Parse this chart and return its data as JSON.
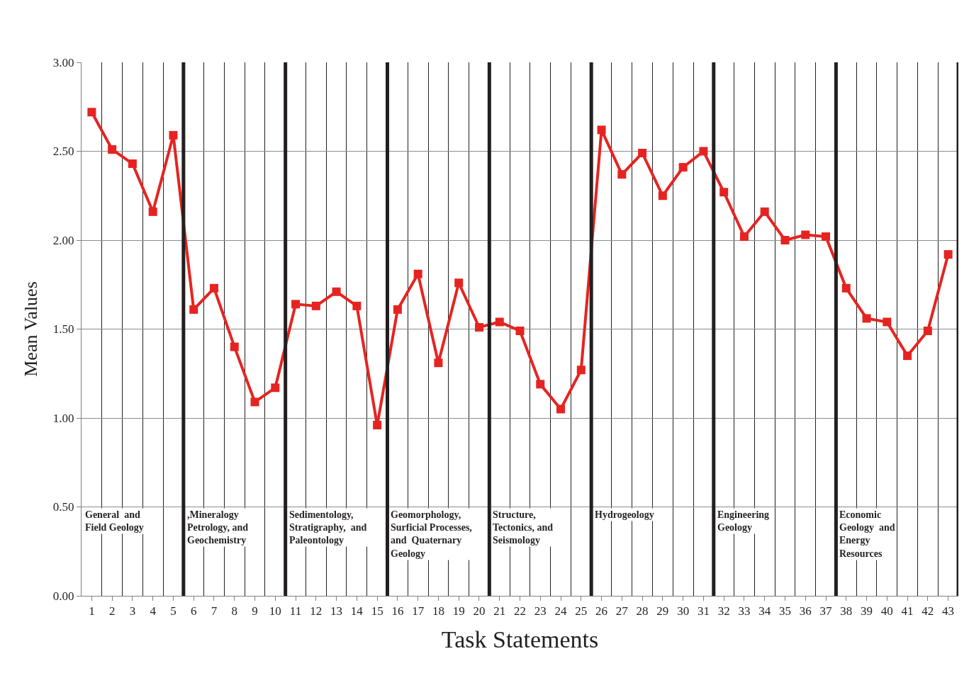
{
  "chart_data": {
    "type": "line",
    "xlabel": "Task Statements",
    "ylabel": "Mean Values",
    "x": [
      1,
      2,
      3,
      4,
      5,
      6,
      7,
      8,
      9,
      10,
      11,
      12,
      13,
      14,
      15,
      16,
      17,
      18,
      19,
      20,
      21,
      22,
      23,
      24,
      25,
      26,
      27,
      28,
      29,
      30,
      31,
      32,
      33,
      34,
      35,
      36,
      37,
      38,
      39,
      40,
      41,
      42,
      43
    ],
    "series": [
      {
        "color": "#e52421",
        "values": [
          2.72,
          2.51,
          2.43,
          2.16,
          2.59,
          1.61,
          1.73,
          1.4,
          1.09,
          1.17,
          1.64,
          1.63,
          1.71,
          1.63,
          0.96,
          1.61,
          1.81,
          1.31,
          1.76,
          1.51,
          1.54,
          1.49,
          1.19,
          1.05,
          1.27,
          2.62,
          2.37,
          2.49,
          2.25,
          2.41,
          2.5,
          2.27,
          2.02,
          2.16,
          2.0,
          2.03,
          2.02,
          1.73,
          1.56,
          1.54,
          1.35,
          1.49,
          1.92
        ]
      }
    ],
    "xlim": [
      0.5,
      43.5
    ],
    "xticks": [
      1,
      2,
      3,
      4,
      5,
      6,
      7,
      8,
      9,
      10,
      11,
      12,
      13,
      14,
      15,
      16,
      17,
      18,
      19,
      20,
      21,
      22,
      23,
      24,
      25,
      26,
      27,
      28,
      29,
      30,
      31,
      32,
      33,
      34,
      35,
      36,
      37,
      38,
      39,
      40,
      41,
      42,
      43
    ],
    "ylim": [
      0,
      3
    ],
    "yticks": [
      {
        "value": 0,
        "label": "0.00"
      },
      {
        "value": 0.5,
        "label": "0.50"
      },
      {
        "value": 1,
        "label": "1.00"
      },
      {
        "value": 1.5,
        "label": "1.50"
      },
      {
        "value": 2,
        "label": "2.00"
      },
      {
        "value": 2.5,
        "label": "2.50"
      },
      {
        "value": 3,
        "label": "3.00"
      }
    ],
    "ref_lines": [
      {
        "axis": "x",
        "value": 5.5,
        "color": "#231f20"
      },
      {
        "axis": "x",
        "value": 10.5,
        "color": "#231f20"
      },
      {
        "axis": "x",
        "value": 15.5,
        "color": "#231f20"
      },
      {
        "axis": "x",
        "value": 20.5,
        "color": "#231f20"
      },
      {
        "axis": "x",
        "value": 25.5,
        "color": "#231f20"
      },
      {
        "axis": "x",
        "value": 31.5,
        "color": "#231f20"
      },
      {
        "axis": "x",
        "value": 37.5,
        "color": "#231f20"
      },
      {
        "axis": "x",
        "value": 43.5,
        "color": "#231f20"
      }
    ],
    "annotations": [
      "General  and\nField Geology",
      ",Mineralogy\nPetrology, and\nGeochemistry",
      "Sedimentology,\nStratigraphy,  and\nPaleontology",
      "Geomorphology,\nSurficial Processes,\nand  Quaternary\nGeology",
      "Structure,\nTectonics, and\nSeismology",
      "Hydrogeology",
      "Engineering\nGeology",
      "Economic\nGeology  and\nEnergy\nResources"
    ],
    "grid": true,
    "marker": "square",
    "line_style": "solid"
  }
}
